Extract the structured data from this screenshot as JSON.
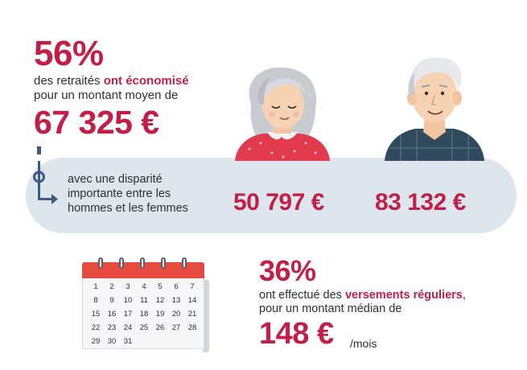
{
  "savings": {
    "percentage": "56%",
    "text_before": "des retraités ",
    "text_highlight": "ont économisé",
    "text_line2": "pour un montant moyen de",
    "average_amount": "67 325 €"
  },
  "disparity": {
    "lines": [
      "avec une disparité",
      "importante entre les",
      "hommes et les femmes"
    ],
    "women_amount": "50 797 €",
    "men_amount": "83 132 €"
  },
  "regular_payments": {
    "percentage": "36%",
    "text_before": "ont effectué des ",
    "text_highlight": "versements réguliers",
    "text_after": ",",
    "text_line2": "pour un montant médian de",
    "median_amount": "148 €",
    "unit": "/mois"
  },
  "calendar": {
    "days": [
      "1",
      "2",
      "3",
      "4",
      "5",
      "6",
      "7",
      "8",
      "9",
      "10",
      "11",
      "12",
      "13",
      "14",
      "15",
      "16",
      "17",
      "18",
      "19",
      "20",
      "21",
      "22",
      "23",
      "24",
      "25",
      "26",
      "27",
      "28",
      "29",
      "30",
      "31"
    ]
  },
  "colors": {
    "accent_red": "#c21f48",
    "banner_blue": "#dde6ec",
    "calendar_red": "#e44b3e"
  },
  "icons": {
    "woman": "elderly-woman-illustration",
    "man": "elderly-man-illustration",
    "calendar": "calendar-illustration",
    "connector": "arrow-connector-icon"
  }
}
